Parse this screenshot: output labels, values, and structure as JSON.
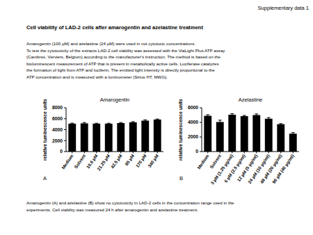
{
  "header": "Supplementary data 1",
  "title": "Cell viability of LAD-2 cells after amarogentin and azelastine treatment",
  "paragraph": [
    "Amarogentin (100 µM) and azelastine (24 µM) were used in not cytotoxic concentrations.",
    "To test the cytotoxicity of the extracts LAD-2 cell viability was assessed with the ViaLight Plus ATP assay",
    "(Cambrex, Verviers, Belgium) according to the manufacturer's instruction.  The method is based on the",
    "bioluminescent measurement of ATP that is present in metabolically active cells. Luciferase catalyzes",
    "the formation of light from ATP and luciferin. The emitted light intensity is directly proportional to the",
    "ATP concentration and is measured with a luminometer (Sirius HT, MWG)."
  ],
  "chart_data": [
    {
      "type": "bar",
      "title": "Amarogentin",
      "label": "A",
      "y_label": "relative luminescence units",
      "categories": [
        "Medium",
        "Solvent",
        "10.6 µM",
        "21.25 µM",
        "42.5 µM",
        "85 µM",
        "170 µM",
        "340 µM"
      ],
      "values": [
        5100,
        5150,
        5100,
        5100,
        5200,
        5350,
        5650,
        5850
      ],
      "errors": [
        100,
        150,
        80,
        80,
        100,
        120,
        150,
        100
      ],
      "color": "#000000",
      "ylim": [
        0,
        8000
      ],
      "yticks": [
        0,
        2000,
        4000,
        6000,
        8000
      ]
    },
    {
      "type": "bar",
      "title": "Azelastine",
      "label": "B",
      "y_label": "relative luminescence units",
      "categories": [
        "Medium",
        "Solvent",
        "3 µM (1.25 µg/ml)",
        "6 µM (2.5 µg/ml)",
        "12 µM (5 µg/ml)",
        "24 µM (10 µg/ml)",
        "48 µM (20 µg/ml)",
        "96 µM (40 µg/ml)"
      ],
      "values": [
        4900,
        4050,
        5050,
        4850,
        5000,
        4500,
        3750,
        2450
      ],
      "errors": [
        150,
        250,
        150,
        100,
        150,
        150,
        80,
        150
      ],
      "color": "#000000",
      "ylim": [
        0,
        6000
      ],
      "yticks": [
        0,
        2000,
        4000,
        6000
      ]
    }
  ],
  "caption": [
    "Amarogentin (A)  and azelastine (B) show no cytotoxicity in LAD-2 cells in the concentration range used in the",
    "experiments. Cell viability was measured 24 h after amarogentin and azelastine treatment."
  ]
}
